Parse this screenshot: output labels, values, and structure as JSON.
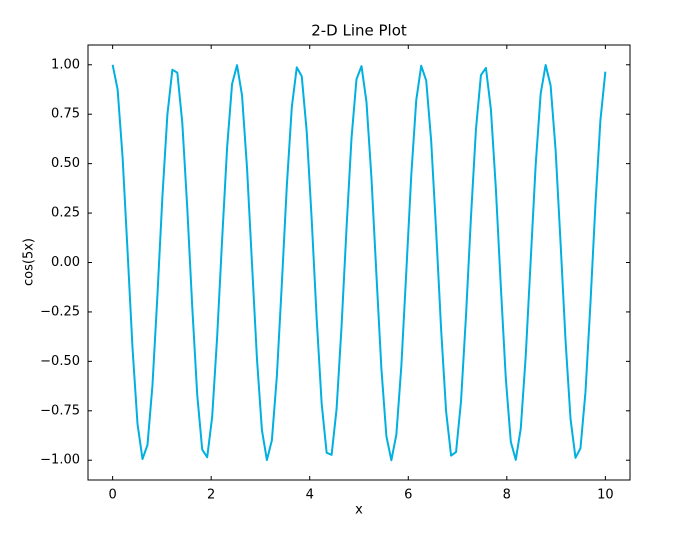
{
  "chart_data": {
    "type": "line",
    "title": "2-D Line Plot",
    "x_label": "x",
    "y_label": "cos(5x)",
    "x": [
      0,
      0.101,
      0.202,
      0.303,
      0.404,
      0.505,
      0.606,
      0.707,
      0.808,
      0.909,
      1.01,
      1.111,
      1.212,
      1.313,
      1.414,
      1.515,
      1.616,
      1.717,
      1.818,
      1.919,
      2.02,
      2.121,
      2.222,
      2.323,
      2.424,
      2.525,
      2.626,
      2.727,
      2.828,
      2.929,
      3.03,
      3.131,
      3.232,
      3.333,
      3.434,
      3.535,
      3.636,
      3.737,
      3.838,
      3.939,
      4.04,
      4.141,
      4.242,
      4.343,
      4.444,
      4.545,
      4.646,
      4.747,
      4.848,
      4.949,
      5.051,
      5.152,
      5.253,
      5.354,
      5.455,
      5.556,
      5.657,
      5.758,
      5.859,
      5.96,
      6.061,
      6.162,
      6.263,
      6.364,
      6.465,
      6.566,
      6.667,
      6.768,
      6.869,
      6.97,
      7.071,
      7.172,
      7.273,
      7.374,
      7.475,
      7.576,
      7.677,
      7.778,
      7.879,
      7.98,
      8.081,
      8.182,
      8.283,
      8.384,
      8.485,
      8.586,
      8.687,
      8.788,
      8.889,
      8.99,
      9.091,
      9.192,
      9.293,
      9.394,
      9.495,
      9.596,
      9.697,
      9.798,
      9.899,
      10
    ],
    "series": [
      {
        "color": "#00b0e0",
        "values": [
          1,
          0.875,
          0.532,
          0.056,
          -0.435,
          -0.817,
          -0.994,
          -0.923,
          -0.622,
          -0.166,
          0.333,
          0.747,
          0.975,
          0.96,
          0.706,
          0.275,
          -0.225,
          -0.67,
          -0.946,
          -0.985,
          -0.781,
          -0.377,
          0.115,
          0.581,
          0.903,
          0.998,
          0.845,
          0.48,
          -0.004,
          -0.487,
          -0.848,
          -0.999,
          -0.899,
          -0.575,
          -0.107,
          0.387,
          0.785,
          0.987,
          0.942,
          0.662,
          0.217,
          -0.283,
          -0.713,
          -0.962,
          -0.973,
          -0.741,
          -0.323,
          0.175,
          0.629,
          0.927,
          0.993,
          0.811,
          0.427,
          -0.064,
          -0.539,
          -0.879,
          -1,
          -0.871,
          -0.525,
          -0.047,
          0.442,
          0.821,
          0.995,
          0.92,
          0.615,
          0.158,
          -0.34,
          -0.753,
          -0.977,
          -0.958,
          -0.7,
          -0.267,
          0.233,
          0.675,
          0.948,
          0.984,
          0.775,
          0.372,
          -0.124,
          -0.588,
          -0.907,
          -0.998,
          -0.84,
          -0.472,
          0.013,
          0.495,
          0.854,
          0.999,
          0.895,
          0.569,
          0.099,
          -0.395,
          -0.791,
          -0.988,
          -0.939,
          -0.656,
          -0.208,
          0.291,
          0.718,
          0.965
        ]
      }
    ],
    "xlim": [
      -0.5,
      10.5
    ],
    "ylim": [
      -1.1,
      1.1
    ],
    "xticks": [
      0,
      2,
      4,
      6,
      8,
      10
    ],
    "yticks": [
      {
        "value": -1,
        "label": "−1.00"
      },
      {
        "value": -0.75,
        "label": "−0.75"
      },
      {
        "value": -0.5,
        "label": "−0.50"
      },
      {
        "value": -0.25,
        "label": "−0.25"
      },
      {
        "value": 0,
        "label": "0.00"
      },
      {
        "value": 0.25,
        "label": "0.25"
      },
      {
        "value": 0.5,
        "label": "0.50"
      },
      {
        "value": 0.75,
        "label": "0.75"
      },
      {
        "value": 1,
        "label": "1.00"
      }
    ]
  }
}
